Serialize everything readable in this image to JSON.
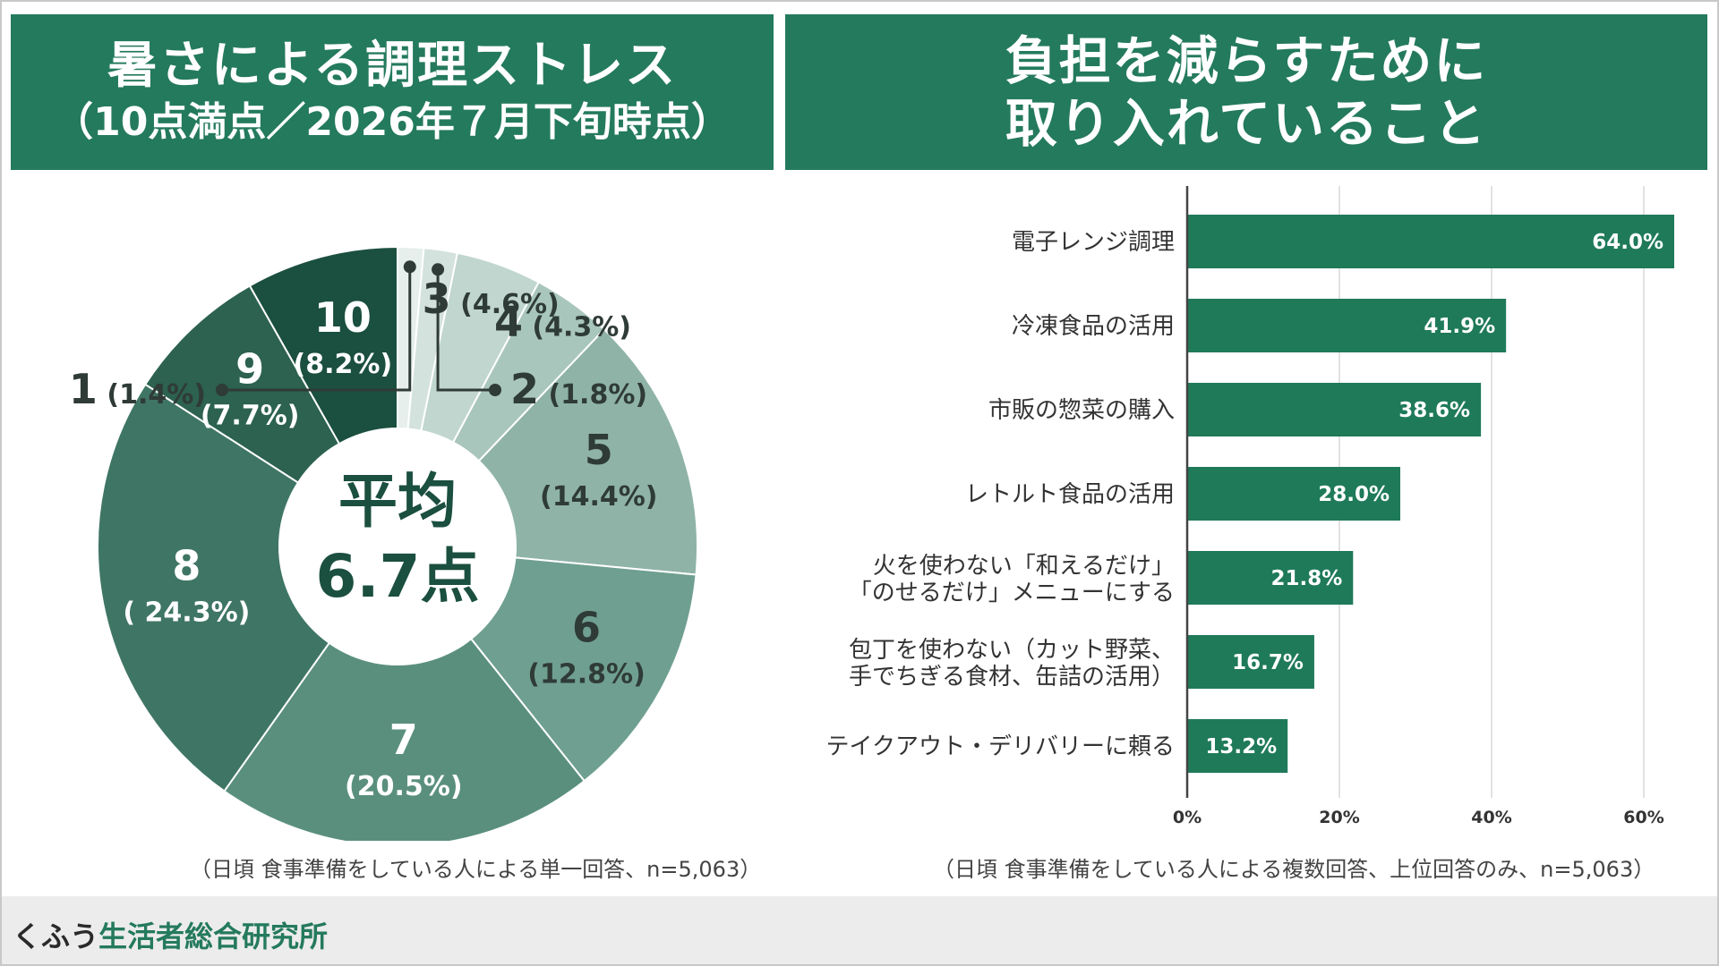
{
  "left_panel": {
    "title_line1": "暑さによる調理ストレス",
    "title_line2": "（10点満点／2026年７月下旬時点）",
    "center_label_line1": "平均",
    "center_label_line2": "6.7点",
    "note": "（日頃 食事準備をしている人による単一回答、n=5,063）"
  },
  "right_panel": {
    "title_line1": "負担を減らすために",
    "title_line2": "取り入れていること",
    "note": "（日頃 食事準備をしている人による複数回答、上位回答のみ、n=5,063）"
  },
  "footer": {
    "brand_prefix": "くふう",
    "brand_name": "生活者総合研究所"
  },
  "colors": {
    "header_bg": "#247a5c",
    "bar": "#1f7a5a",
    "pie": [
      "#e6efec",
      "#d3e2dd",
      "#c0d6cf",
      "#a9c6bc",
      "#8fb3a7",
      "#6f9f90",
      "#5a8f7e",
      "#3f7564",
      "#2c624f",
      "#1b4f3f"
    ]
  },
  "chart_data": [
    {
      "type": "pie",
      "title": "暑さによる調理ストレス（10点満点／2026年７月下旬時点）",
      "categories": [
        "1",
        "2",
        "3",
        "4",
        "5",
        "6",
        "7",
        "8",
        "9",
        "10"
      ],
      "values": [
        1.4,
        1.8,
        4.6,
        4.3,
        14.4,
        12.8,
        20.5,
        24.3,
        7.7,
        8.2
      ],
      "value_labels": [
        "(1.4%)",
        "(1.8%)",
        "(4.6%)",
        "(4.3%)",
        "(14.4%)",
        "(12.8%)",
        "(20.5%)",
        "( 24.3%)",
        "(7.7%)",
        "(8.2%)"
      ],
      "center_text": "平均 6.7点"
    },
    {
      "type": "bar",
      "orientation": "horizontal",
      "title": "負担を減らすために取り入れていること",
      "categories": [
        [
          "電子レンジ調理"
        ],
        [
          "冷凍食品の活用"
        ],
        [
          "市販の惣菜の購入"
        ],
        [
          "レトルト食品の活用"
        ],
        [
          "火を使わない「和えるだけ」",
          "「のせるだけ」メニューにする"
        ],
        [
          "包丁を使わない（カット野菜、",
          "手でちぎる食材、缶詰の活用）"
        ],
        [
          "テイクアウト・デリバリーに頼る"
        ]
      ],
      "values": [
        64.0,
        41.9,
        38.6,
        28.0,
        21.8,
        16.7,
        13.2
      ],
      "value_labels": [
        "64.0%",
        "41.9%",
        "38.6%",
        "28.0%",
        "21.8%",
        "16.7%",
        "13.2%"
      ],
      "xlim": [
        0,
        60
      ],
      "xticks": [
        "0%",
        "20%",
        "40%",
        "60%"
      ],
      "grid": true
    }
  ]
}
